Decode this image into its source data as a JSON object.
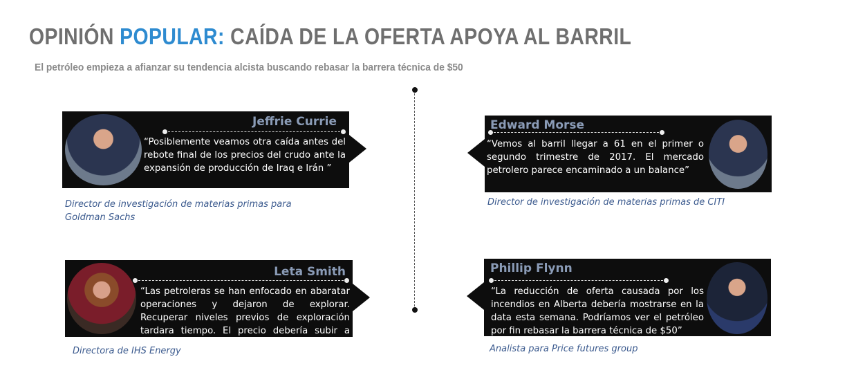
{
  "header": {
    "title_part1": "OPINIÓN ",
    "title_highlight": "POPULAR:",
    "title_part2": " CAÍDA DE LA OFERTA APOYA AL BARRIL",
    "subtitle": "El petróleo empieza a afianzar su tendencia alcista buscando rebasar la barrera técnica de $50"
  },
  "colors": {
    "accent": "#2e8bd0",
    "title_gray": "#6f6f6f",
    "card_bg": "#0d0d0d",
    "name": "#8a9bb6",
    "caption": "#3b5a8e"
  },
  "opinions": [
    {
      "name": "Jeffrie Currie",
      "quote": "“Posiblemente veamos otra caída antes del rebote final de los precios del crudo ante la expansión de producción de Iraq e Irán ”",
      "caption": "Director de investigación de materias primas para Goldman Sachs"
    },
    {
      "name": "Edward Morse",
      "quote": "“Vemos al barril llegar a 61 en el primer o segundo trimestre de 2017. El mercado petrolero parece encaminado a un balance”",
      "caption": "Director de investigación de materias primas de CITI"
    },
    {
      "name": "Leta Smith",
      "quote": "“Las petroleras se han enfocado en abaratar operaciones y dejaron de explorar. Recuperar niveles previos de exploración tardara tiempo. El precio debería subir a largo plazo”",
      "caption": "Directora de IHS Energy"
    },
    {
      "name": "Phillip Flynn",
      "quote": "“La reducción de oferta causada por los incendios en Alberta debería mostrarse en la data esta semana. Podríamos ver el petróleo por fin rebasar la barrera técnica de $50”",
      "caption": "Analista para Price futures group"
    }
  ]
}
